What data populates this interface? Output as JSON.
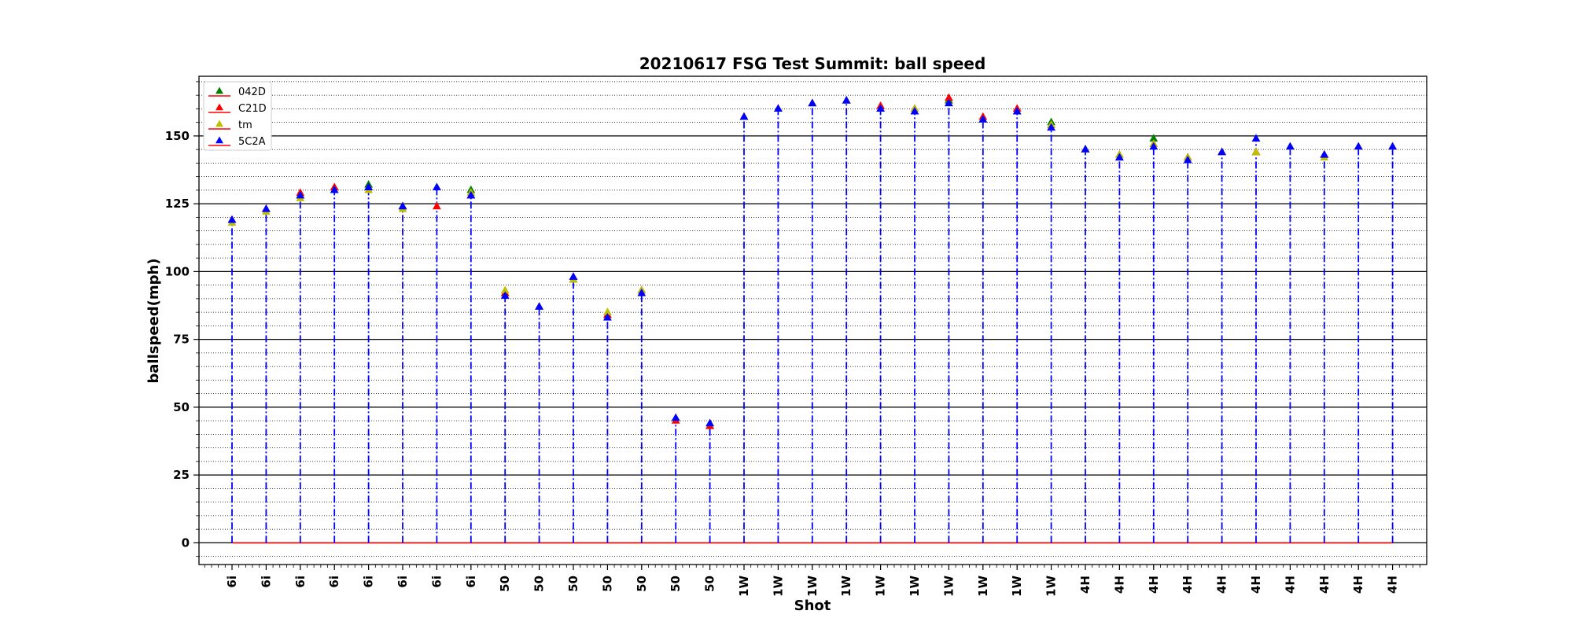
{
  "chart_data": {
    "type": "scatter",
    "title": "20210617 FSG Test Summit: ball speed",
    "xlabel": "Shot",
    "ylabel": "ballspeed(mph)",
    "categories": [
      "6i",
      "6i",
      "6i",
      "6i",
      "6i",
      "6i",
      "6i",
      "6i",
      "50",
      "50",
      "50",
      "50",
      "50",
      "50",
      "50",
      "1W",
      "1W",
      "1W",
      "1W",
      "1W",
      "1W",
      "1W",
      "1W",
      "1W",
      "1W",
      "4H",
      "4H",
      "4H",
      "4H",
      "4H",
      "4H",
      "4H",
      "4H",
      "4H",
      "4H"
    ],
    "ylim": [
      -8,
      172
    ],
    "yticks": [
      0,
      25,
      50,
      75,
      100,
      125,
      150
    ],
    "grid": "major solid, minor dotted",
    "legend_position": "top-left",
    "baseline_color": "#ff0000",
    "stem_color": "#0000ff",
    "series": [
      {
        "name": "042D",
        "color": "#008000",
        "values": [
          119,
          123,
          128,
          131,
          132,
          124,
          131,
          130,
          92,
          87,
          97,
          84,
          93,
          46,
          43,
          157,
          160,
          162,
          163,
          160,
          159,
          163,
          156,
          159,
          155,
          145,
          143,
          149,
          142,
          144,
          144,
          146,
          143,
          146,
          146
        ]
      },
      {
        "name": "C21D",
        "color": "#ff0000",
        "values": [
          119,
          123,
          129,
          131,
          131,
          124,
          124,
          128,
          92,
          87,
          98,
          84,
          93,
          45,
          43,
          157,
          160,
          162,
          163,
          161,
          160,
          164,
          157,
          160,
          154,
          145,
          142,
          147,
          142,
          144,
          144,
          146,
          143,
          146,
          146
        ]
      },
      {
        "name": "tm",
        "color": "#bfbf00",
        "values": [
          118,
          122,
          127,
          130,
          130,
          123,
          131,
          129,
          93,
          87,
          97,
          85,
          93,
          46,
          44,
          157,
          160,
          162,
          163,
          160,
          160,
          162,
          156,
          159,
          154,
          145,
          143,
          147,
          142,
          144,
          144,
          146,
          142,
          146,
          146
        ]
      },
      {
        "name": "5C2A",
        "color": "#0000ff",
        "values": [
          119,
          123,
          128,
          130,
          131,
          124,
          131,
          128,
          91,
          87,
          98,
          83,
          92,
          46,
          44,
          157,
          160,
          162,
          163,
          160,
          159,
          162,
          156,
          159,
          153,
          145,
          142,
          146,
          141,
          144,
          149,
          146,
          143,
          146,
          146
        ]
      }
    ]
  }
}
